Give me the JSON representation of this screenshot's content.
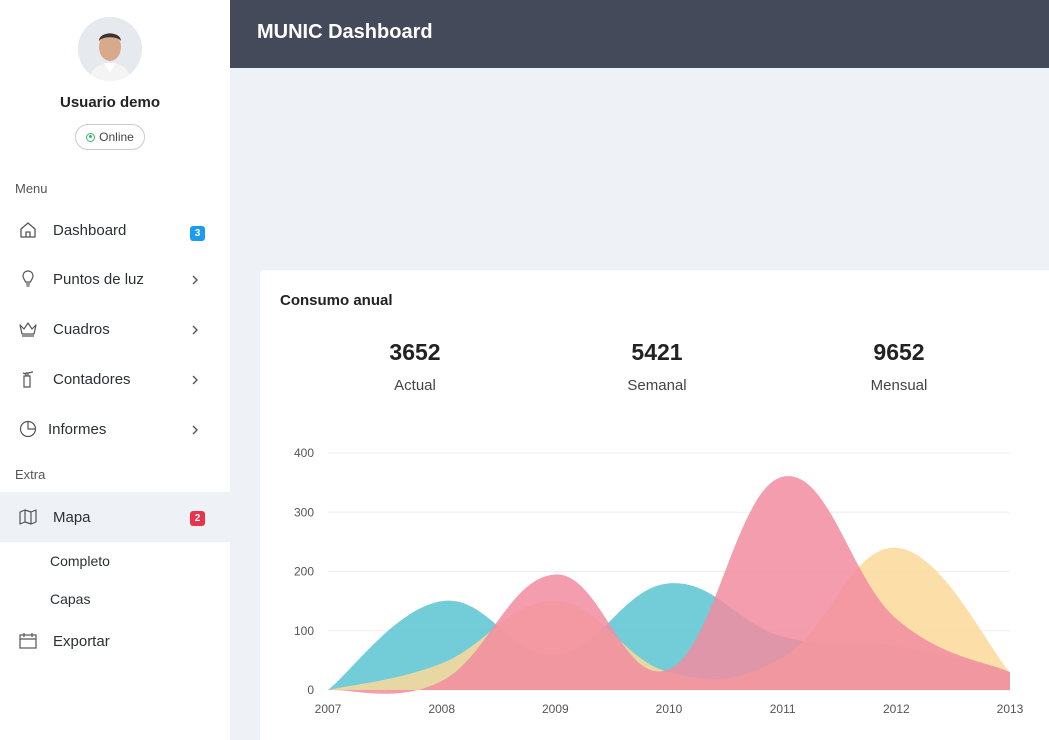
{
  "sidebar": {
    "user": {
      "name": "Usuario demo",
      "status": "Online"
    },
    "menu_label": "Menu",
    "extra_label": "Extra",
    "items": {
      "dashboard": {
        "label": "Dashboard",
        "icon": "home-icon",
        "badge": "3",
        "badge_color": "#1a9cf0"
      },
      "puntos": {
        "label": "Puntos de luz",
        "icon": "lightbulb-icon"
      },
      "cuadros": {
        "label": "Cuadros",
        "icon": "crown-icon"
      },
      "contadores": {
        "label": "Contadores",
        "icon": "fire-extinguisher-icon"
      },
      "informes": {
        "label": "Informes",
        "icon": "pie-chart-icon"
      },
      "mapa": {
        "label": "Mapa",
        "icon": "map-icon",
        "badge": "2",
        "badge_color": "#e8334d"
      },
      "completo": {
        "label": "Completo"
      },
      "capas": {
        "label": "Capas"
      },
      "exportar": {
        "label": "Exportar",
        "icon": "calendar-icon"
      }
    }
  },
  "header": {
    "title": "MUNIC Dashboard",
    "background": "#444a5a"
  },
  "card": {
    "title": "Consumo anual",
    "stats": [
      {
        "value": "3652",
        "label": "Actual"
      },
      {
        "value": "5421",
        "label": "Semanal"
      },
      {
        "value": "9652",
        "label": "Mensual"
      }
    ]
  },
  "chart_data": {
    "type": "area",
    "x": [
      "2007",
      "2008",
      "2009",
      "2010",
      "2011",
      "2012",
      "2013"
    ],
    "ylim": [
      0,
      400
    ],
    "yticks": [
      0,
      100,
      200,
      300,
      400
    ],
    "grid": true,
    "series": [
      {
        "color": "#5bc4d1",
        "values": [
          0,
          150,
          60,
          180,
          90,
          75,
          30
        ]
      },
      {
        "color": "#fbd89a",
        "values": [
          0,
          45,
          150,
          30,
          55,
          240,
          30
        ]
      },
      {
        "color": "#f28ca0",
        "values": [
          0,
          15,
          195,
          35,
          360,
          120,
          30
        ]
      }
    ]
  }
}
